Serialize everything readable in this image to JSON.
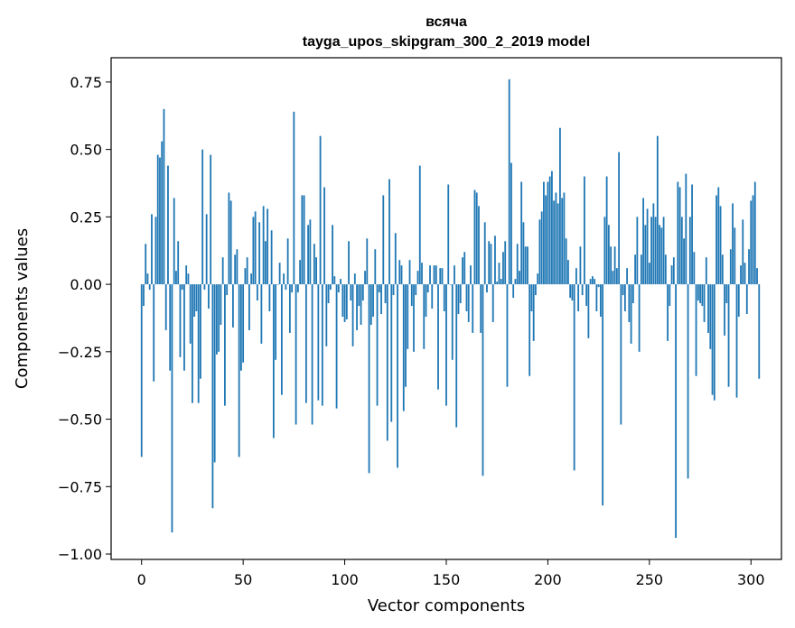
{
  "chart_data": {
    "type": "bar",
    "title": "всяча",
    "subtitle": "tayga_upos_skipgram_300_2_2019 model",
    "xlabel": "Vector components",
    "ylabel": "Components values",
    "xlim": [
      -15,
      315
    ],
    "ylim": [
      -1.02,
      0.84
    ],
    "xticks": [
      0,
      50,
      100,
      150,
      200,
      250,
      300
    ],
    "xtick_labels": [
      "0",
      "50",
      "100",
      "150",
      "200",
      "250",
      "300"
    ],
    "yticks": [
      0.75,
      0.5,
      0.25,
      0.0,
      -0.25,
      -0.5,
      -0.75,
      -1.0
    ],
    "ytick_labels": [
      "0.75",
      "0.50",
      "0.25",
      "0.00",
      "−0.25",
      "−0.50",
      "−0.75",
      "−1.00"
    ],
    "color": "#1f77b4",
    "grid": false,
    "legend": "none",
    "values": [
      -0.64,
      -0.08,
      0.15,
      0.04,
      -0.02,
      0.26,
      -0.36,
      0.25,
      0.48,
      0.47,
      0.53,
      0.65,
      -0.17,
      0.44,
      -0.32,
      -0.92,
      0.32,
      0.05,
      0.16,
      -0.27,
      -0.02,
      -0.32,
      0.07,
      0.04,
      -0.22,
      -0.44,
      -0.12,
      -0.1,
      -0.44,
      -0.35,
      0.5,
      -0.02,
      0.26,
      -0.09,
      0.48,
      -0.83,
      -0.66,
      -0.26,
      -0.25,
      -0.15,
      0.1,
      -0.45,
      -0.04,
      0.34,
      0.31,
      -0.16,
      0.11,
      0.13,
      -0.64,
      -0.32,
      -0.29,
      0.06,
      0.1,
      -0.17,
      0.04,
      0.25,
      0.27,
      -0.06,
      0.23,
      -0.22,
      0.29,
      0.16,
      0.28,
      -0.1,
      0.2,
      -0.57,
      -0.28,
      0.0,
      0.08,
      -0.41,
      0.04,
      -0.02,
      0.17,
      -0.18,
      -0.03,
      0.64,
      -0.52,
      -0.03,
      0.09,
      0.33,
      0.33,
      -0.44,
      0.22,
      0.24,
      -0.52,
      0.15,
      0.1,
      -0.43,
      0.55,
      -0.45,
      0.36,
      -0.23,
      -0.07,
      -0.02,
      0.22,
      0.03,
      -0.46,
      -0.03,
      0.02,
      -0.12,
      -0.14,
      -0.13,
      0.16,
      -0.06,
      -0.23,
      0.04,
      -0.17,
      -0.08,
      -0.15,
      -0.06,
      0.05,
      0.17,
      -0.7,
      -0.15,
      -0.12,
      0.13,
      -0.45,
      -0.03,
      -0.11,
      0.33,
      -0.07,
      -0.58,
      0.39,
      -0.51,
      -0.04,
      0.19,
      -0.68,
      0.09,
      0.07,
      -0.47,
      -0.38,
      -0.24,
      0.09,
      -0.08,
      -0.25,
      -0.04,
      0.05,
      0.44,
      0.08,
      -0.24,
      -0.12,
      -0.03,
      0.07,
      -0.09,
      0.07,
      0.07,
      -0.39,
      0.06,
      0.06,
      -0.1,
      -0.45,
      0.37,
      0.0,
      -0.28,
      0.07,
      -0.53,
      -0.11,
      -0.07,
      0.1,
      0.12,
      -0.1,
      -0.14,
      0.07,
      -0.18,
      0.35,
      0.34,
      0.29,
      -0.18,
      -0.71,
      0.23,
      -0.03,
      0.16,
      0.15,
      -0.14,
      0.18,
      0.01,
      0.08,
      0.02,
      0.12,
      0.16,
      -0.38,
      0.76,
      0.45,
      -0.05,
      0.02,
      0.15,
      0.05,
      0.38,
      0.23,
      0.14,
      0.14,
      -0.34,
      -0.1,
      -0.21,
      -0.04,
      0.04,
      0.24,
      0.27,
      0.38,
      0.33,
      0.38,
      0.4,
      0.42,
      0.31,
      0.34,
      0.3,
      0.58,
      0.32,
      0.34,
      0.17,
      0.09,
      -0.05,
      -0.06,
      -0.69,
      0.06,
      -0.1,
      0.14,
      -0.04,
      0.4,
      -0.08,
      -0.2,
      0.02,
      0.03,
      0.02,
      -0.1,
      -0.01,
      -0.12,
      -0.82,
      0.25,
      0.4,
      0.22,
      0.14,
      0.05,
      0.14,
      0.06,
      0.49,
      -0.52,
      -0.04,
      -0.1,
      0.06,
      -0.14,
      -0.22,
      -0.07,
      0.11,
      0.25,
      -0.25,
      0.11,
      0.32,
      0.22,
      0.28,
      0.08,
      0.25,
      0.3,
      0.25,
      0.55,
      0.22,
      0.21,
      0.25,
      0.11,
      -0.21,
      -0.08,
      0.07,
      0.1,
      -0.94,
      0.38,
      0.36,
      0.25,
      0.17,
      0.41,
      -0.72,
      0.25,
      0.37,
      0.12,
      -0.34,
      -0.06,
      -0.07,
      -0.08,
      -0.14,
      0.1,
      -0.18,
      -0.24,
      -0.41,
      -0.43,
      0.33,
      0.36,
      0.29,
      0.11,
      -0.19,
      -0.07,
      -0.38,
      0.13,
      0.3,
      0.21,
      -0.42,
      -0.12,
      0.07,
      0.24,
      0.08,
      -0.11,
      0.13,
      0.31,
      0.33,
      0.38,
      0.06,
      -0.35
    ]
  }
}
